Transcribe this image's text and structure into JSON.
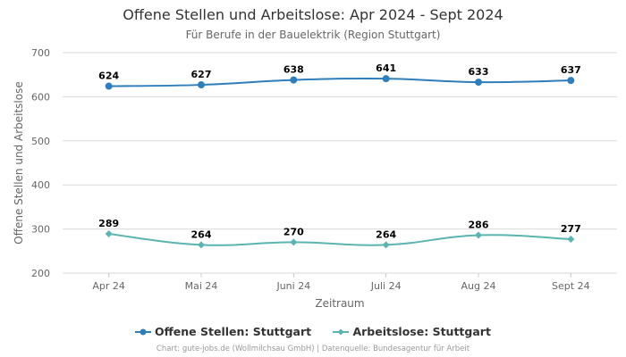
{
  "chart_data": {
    "type": "line",
    "title": "Offene Stellen und Arbeitslose: Apr 2024 - Sept 2024",
    "subtitle": "Für Berufe in der Bauelektrik (Region Stuttgart)",
    "xlabel": "Zeitraum",
    "ylabel": "Offene Stellen und Arbeitslose",
    "categories": [
      "Apr 24",
      "Mai 24",
      "Juni 24",
      "Juli 24",
      "Aug 24",
      "Sept 24"
    ],
    "ylim": [
      200,
      700
    ],
    "yticks": [
      200,
      300,
      400,
      500,
      600,
      700
    ],
    "grid": true,
    "legend_position": "bottom",
    "series": [
      {
        "name": "Offene Stellen: Stuttgart",
        "color": "#2f7ebc",
        "marker": "circle",
        "values": [
          624,
          627,
          638,
          641,
          633,
          637
        ]
      },
      {
        "name": "Arbeitslose: Stuttgart",
        "color": "#5ab4b0",
        "marker": "diamond",
        "values": [
          289,
          264,
          270,
          264,
          286,
          277
        ]
      }
    ],
    "credits": "Chart: gute-jobs.de (Wollmilchsau GmbH) | Datenquelle: Bundesagentur für Arbeit"
  }
}
